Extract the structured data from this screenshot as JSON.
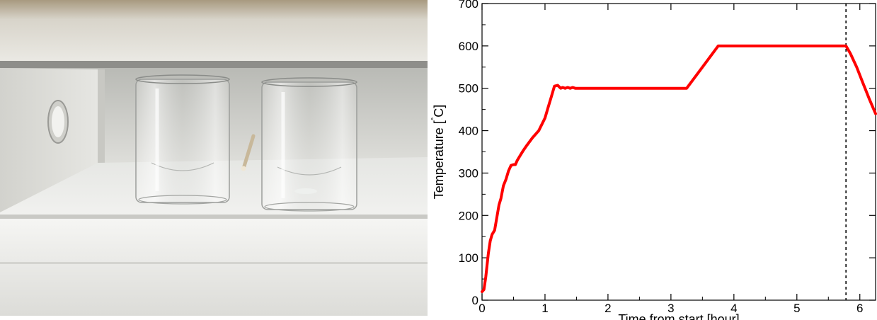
{
  "photo": {
    "subject": "two glass beakers on a shelf inside a furnace"
  },
  "chart_data": {
    "type": "line",
    "title": "",
    "xlabel": "Time from start [hour]",
    "ylabel": "Temperature [°C]",
    "ylabel_parts": {
      "main": "Temperature [",
      "degree": "°",
      "unit": "C]"
    },
    "xlim": [
      0,
      6.25
    ],
    "ylim": [
      0,
      700
    ],
    "xticks": [
      0,
      1,
      2,
      3,
      4,
      5,
      6
    ],
    "xtick_labels": [
      "0",
      "1",
      "2",
      "3",
      "4",
      "5",
      "6"
    ],
    "yticks": [
      0,
      100,
      200,
      300,
      400,
      500,
      600,
      700
    ],
    "ytick_labels": [
      "0",
      "100",
      "200",
      "300",
      "400",
      "500",
      "600",
      "700"
    ],
    "grid": false,
    "series": [
      {
        "color": "#ff0000",
        "x": [
          0,
          0.03,
          0.06,
          0.1,
          0.13,
          0.16,
          0.2,
          0.24,
          0.27,
          0.3,
          0.34,
          0.38,
          0.42,
          0.46,
          0.5,
          0.53,
          0.56,
          0.6,
          0.65,
          0.7,
          0.8,
          0.9,
          1.0,
          1.05,
          1.1,
          1.15,
          1.2,
          1.25,
          1.28,
          1.32,
          1.36,
          1.4,
          1.44,
          1.48,
          1.52,
          1.6,
          2.0,
          2.5,
          3.0,
          3.25,
          3.5,
          3.75,
          4.0,
          4.5,
          5.0,
          5.5,
          5.78,
          5.85,
          5.95,
          6.05,
          6.15,
          6.25
        ],
        "y": [
          20,
          25,
          55,
          110,
          140,
          155,
          165,
          200,
          225,
          240,
          270,
          285,
          305,
          318,
          320,
          320,
          330,
          340,
          352,
          363,
          383,
          400,
          430,
          455,
          480,
          505,
          507,
          500,
          502,
          500,
          502,
          500,
          502,
          500,
          500,
          500,
          500,
          500,
          500,
          500,
          550,
          600,
          600,
          600,
          600,
          600,
          600,
          582,
          550,
          512,
          475,
          440
        ]
      }
    ],
    "vline": {
      "x": 5.78,
      "style": "dashed",
      "color": "#000000"
    }
  }
}
